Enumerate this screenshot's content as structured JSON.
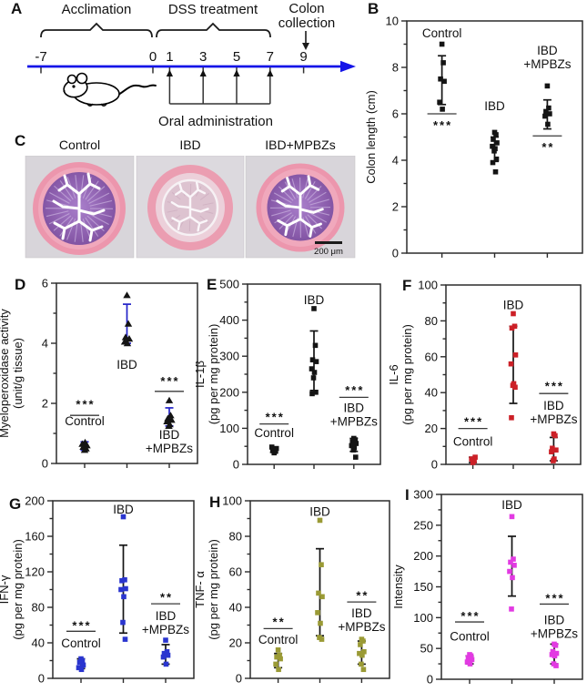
{
  "colors": {
    "sig": "#b93a3a",
    "axis": "#2b2b2b"
  },
  "panel_a": {
    "letter": "A",
    "acclimation_label": "Acclimation",
    "dss_label": "DSS treatment",
    "colon_line1": "Colon",
    "colon_line2": "collection",
    "oral_label": "Oral administration",
    "timeline_days": [
      "-7",
      "0",
      "1",
      "3",
      "5",
      "7",
      "9"
    ],
    "oral_days": [
      1,
      3,
      5,
      7
    ],
    "timeline_color": "#1414e8"
  },
  "panel_c": {
    "letter": "C",
    "image_labels": [
      "Control",
      "IBD",
      "IBD+MPBZs"
    ],
    "scale_bar_label": "200 μm"
  },
  "chart_data": "see charts[]",
  "charts": [
    {
      "id": "B",
      "letter": "B",
      "type": "scatter",
      "ylabel": [
        "Colon length (cm)"
      ],
      "ylim": [
        0,
        10
      ],
      "ytick": 2,
      "yminor": 1,
      "marker": "square",
      "marker_color": "#141414",
      "error_color": "#141414",
      "groups": [
        {
          "name": [
            "Control"
          ],
          "name_y": 9.5,
          "points": [
            9.0,
            8.2,
            7.5,
            7.4,
            6.5,
            6.2
          ],
          "err": [
            6.4,
            8.5
          ],
          "sig": "***",
          "sig_line_y": 6.0,
          "sig_star_y": 5.5
        },
        {
          "name": [
            "IBD"
          ],
          "name_y": 6.35,
          "points": [
            5.2,
            5.1,
            4.9,
            4.75,
            4.6,
            4.5,
            4.4,
            4.05,
            3.9,
            3.5
          ],
          "err": [
            3.95,
            5.0
          ]
        },
        {
          "name": [
            "IBD",
            "+MPBZs"
          ],
          "name_y": 8.75,
          "points": [
            7.2,
            6.25,
            6.1,
            6.0,
            5.9,
            5.55
          ],
          "err": [
            5.35,
            6.6
          ],
          "sig": "**",
          "sig_line_y": 5.05,
          "sig_star_y": 4.55
        }
      ]
    },
    {
      "id": "D",
      "letter": "D",
      "type": "scatter",
      "ylabel": [
        "Myeloperoxidase activity",
        "(unit/g tissue)"
      ],
      "ylim": [
        0,
        6
      ],
      "ytick": 2,
      "yminor": 1,
      "marker": "triangle",
      "marker_color": "#141414",
      "error_color": "#2323c8",
      "groups": [
        {
          "name": [
            "Control"
          ],
          "name_y": 1.42,
          "points": [
            0.45,
            0.5,
            0.55,
            0.6,
            0.65,
            0.7
          ],
          "err": [
            0.44,
            0.72
          ],
          "sig": "***",
          "sig_line_y": 1.6,
          "sig_star_y": 1.95
        },
        {
          "name": [
            "IBD"
          ],
          "name_y": 3.3,
          "points": [
            5.6,
            4.65,
            4.2,
            4.15,
            4.05,
            4.0
          ],
          "err": [
            4.0,
            5.3
          ]
        },
        {
          "name": [
            "IBD",
            "+MPBZs"
          ],
          "name_y": 0.97,
          "points": [
            2.1,
            1.6,
            1.5,
            1.45,
            1.4,
            1.3,
            1.25
          ],
          "err": [
            1.25,
            1.85
          ],
          "sig": "***",
          "sig_line_y": 2.4,
          "sig_star_y": 2.72
        }
      ]
    },
    {
      "id": "E",
      "letter": "E",
      "type": "scatter",
      "ylabel": [
        "IL-1β",
        "(pg per mg protein)"
      ],
      "ylim": [
        0,
        500
      ],
      "ytick": 100,
      "yminor": 50,
      "marker": "square",
      "marker_color": "#141414",
      "error_color": "#141414",
      "groups": [
        {
          "name": [
            "Control"
          ],
          "name_y": 88,
          "points": [
            32,
            36,
            40,
            44,
            48
          ],
          "err": [
            33,
            48
          ],
          "sig": "***",
          "sig_line_y": 112,
          "sig_star_y": 130
        },
        {
          "name": [
            "IBD"
          ],
          "name_y": 457,
          "points": [
            432,
            330,
            290,
            285,
            265,
            255,
            240,
            200,
            196
          ],
          "err": [
            205,
            370
          ]
        },
        {
          "name": [
            "IBD",
            "+MPBZs"
          ],
          "name_y": 158,
          "points": [
            72,
            68,
            63,
            58,
            52,
            46,
            40,
            20
          ],
          "err": [
            36,
            72
          ],
          "sig": "***",
          "sig_line_y": 186,
          "sig_star_y": 205
        }
      ]
    },
    {
      "id": "F",
      "letter": "F",
      "type": "scatter",
      "ylabel": [
        "IL-6",
        "(pg per mg protein)"
      ],
      "ylim": [
        0,
        100
      ],
      "ytick": 20,
      "yminor": 10,
      "marker": "square",
      "marker_color": "#cc2027",
      "error_color": "#141414",
      "groups": [
        {
          "name": [
            "Control"
          ],
          "name_y": 13,
          "points": [
            1,
            2,
            3,
            4
          ],
          "err": [
            1,
            4
          ],
          "sig": "***",
          "sig_line_y": 20,
          "sig_star_y": 23.5
        },
        {
          "name": [
            "IBD"
          ],
          "name_y": 89,
          "points": [
            84,
            77,
            76,
            61,
            56,
            45,
            44,
            43,
            26
          ],
          "err": [
            34,
            77
          ]
        },
        {
          "name": [
            "IBD",
            "+MPBZs"
          ],
          "name_y": 33,
          "points": [
            17,
            16,
            9,
            8,
            7,
            3,
            2
          ],
          "err": [
            2,
            15
          ],
          "sig": "***",
          "sig_line_y": 39.5,
          "sig_star_y": 43.5
        }
      ]
    },
    {
      "id": "G",
      "letter": "G",
      "type": "scatter",
      "ylabel": [
        "IFN-γ",
        "(pg per mg protein)"
      ],
      "ylim": [
        0,
        200
      ],
      "ytick": 40,
      "yminor": 20,
      "marker": "square",
      "marker_color": "#2a35cf",
      "error_color": "#141414",
      "groups": [
        {
          "name": [
            "Control"
          ],
          "name_y": 40,
          "points": [
            22,
            20,
            18,
            15,
            12,
            10
          ],
          "err": [
            11,
            22
          ],
          "sig": "***",
          "sig_line_y": 53,
          "sig_star_y": 59
        },
        {
          "name": [
            "IBD"
          ],
          "name_y": 191,
          "points": [
            182,
            111,
            110,
            101,
            100,
            92,
            63,
            44
          ],
          "err": [
            51,
            150
          ]
        },
        {
          "name": [
            "IBD",
            "+MPBZs"
          ],
          "name_y": 71,
          "points": [
            43,
            30,
            28,
            26,
            24,
            16
          ],
          "err": [
            16,
            38
          ],
          "sig": "**",
          "sig_line_y": 84,
          "sig_star_y": 91
        }
      ]
    },
    {
      "id": "H",
      "letter": "H",
      "type": "scatter",
      "ylabel": [
        "TNF- α",
        "(pg per mg protein)"
      ],
      "ylim": [
        0,
        100
      ],
      "ytick": 20,
      "yminor": 10,
      "marker": "square",
      "marker_color": "#9a9a35",
      "error_color": "#141414",
      "groups": [
        {
          "name": [
            "Control"
          ],
          "name_y": 22,
          "points": [
            16,
            13,
            12,
            11,
            8,
            5
          ],
          "err": [
            6,
            14
          ],
          "sig": "**",
          "sig_line_y": 28,
          "sig_star_y": 31.5
        },
        {
          "name": [
            "IBD"
          ],
          "name_y": 94,
          "points": [
            89,
            64,
            48,
            46,
            37,
            31,
            23,
            22
          ],
          "err": [
            24,
            73
          ]
        },
        {
          "name": [
            "IBD",
            "+MPBZs"
          ],
          "name_y": 37,
          "points": [
            22,
            21,
            19,
            15,
            14,
            13,
            8,
            5
          ],
          "err": [
            8,
            21
          ],
          "sig": "**",
          "sig_line_y": 43,
          "sig_star_y": 46.5
        }
      ]
    },
    {
      "id": "I",
      "letter": "I",
      "type": "scatter",
      "ylabel": [
        "Intensity"
      ],
      "ylim": [
        0,
        300
      ],
      "ytick": 50,
      "yminor": 25,
      "marker": "square",
      "marker_color": "#e23ae2",
      "error_color": "#141414",
      "groups": [
        {
          "name": [
            "Control"
          ],
          "name_y": 70,
          "points": [
            40,
            38,
            35,
            32,
            28,
            25
          ],
          "err": [
            25,
            38
          ],
          "sig": "***",
          "sig_line_y": 93,
          "sig_star_y": 102
        },
        {
          "name": [
            "IBD"
          ],
          "name_y": 284,
          "points": [
            264,
            195,
            190,
            185,
            175,
            165,
            114
          ],
          "err": [
            135,
            232
          ]
        },
        {
          "name": [
            "IBD",
            "+MPBZs"
          ],
          "name_y": 97,
          "points": [
            57,
            55,
            45,
            42,
            40,
            38,
            25,
            22
          ],
          "err": [
            25,
            57
          ],
          "sig": "***",
          "sig_line_y": 122,
          "sig_star_y": 131
        }
      ]
    }
  ]
}
